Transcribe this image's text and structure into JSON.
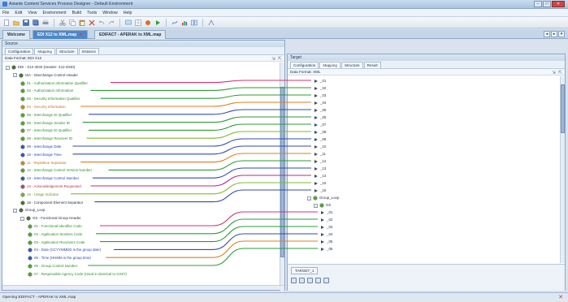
{
  "window": {
    "title": "Axiante Content Services Process Designer - Default Environment",
    "controls": [
      "–",
      "□",
      "✕"
    ]
  },
  "menu": [
    "File",
    "Edit",
    "View",
    "Environment",
    "Build",
    "Tools",
    "Window",
    "Help"
  ],
  "toolbar_icons": [
    "new-icon",
    "open-icon",
    "save-icon",
    "save-all-icon",
    "print-icon",
    "cut-icon",
    "copy-icon",
    "paste-icon",
    "delete-icon",
    "undo-icon",
    "redo-icon",
    "screen-icon",
    "grid-icon",
    "build-icon",
    "run-icon",
    "map-icon",
    "chart-icon",
    "compare-icon",
    "settings-icon"
  ],
  "doc_tabs": [
    {
      "label": "Welcome",
      "active": false
    },
    {
      "label": "EDI X12 to XML.map",
      "active": true
    },
    {
      "label": "EDIFACT - APERAK to XML.map",
      "active": false
    }
  ],
  "source": {
    "header": "Source",
    "tabs": [
      "Configuration",
      "Mapping",
      "Structure",
      "Instance"
    ],
    "active_tab": "Mapping",
    "data_format": "Data Format: EDI X12",
    "tree": [
      {
        "label": "EDI - X12-4040 (Header: X12-4040)",
        "color": "dark",
        "indent": 0,
        "expander": "-"
      },
      {
        "label": "ISA - Interchange Control Header",
        "color": "dark",
        "indent": 1,
        "expander": "-"
      },
      {
        "label": "01 - Authorization Information Qualifier",
        "color": "green",
        "indent": 2
      },
      {
        "label": "02 - Authorization Information",
        "color": "green",
        "indent": 2
      },
      {
        "label": "03 - Security Information Qualifier",
        "color": "green",
        "indent": 2
      },
      {
        "label": "04 - Security Information",
        "color": "orange",
        "indent": 2
      },
      {
        "label": "05 - Interchange ID Qualifier",
        "color": "green",
        "indent": 2
      },
      {
        "label": "06 - Interchange Sender ID",
        "color": "green",
        "indent": 2
      },
      {
        "label": "07 - Interchange ID Qualifier",
        "color": "green",
        "indent": 2
      },
      {
        "label": "08 - Interchange Receiver ID",
        "color": "green",
        "indent": 2
      },
      {
        "label": "09 - Interchange Date",
        "color": "blue",
        "indent": 2
      },
      {
        "label": "10 - Interchange Time",
        "color": "blue",
        "indent": 2
      },
      {
        "label": "11 - Repetition Separator",
        "color": "orange",
        "indent": 2
      },
      {
        "label": "12 - Interchange Control Version Number",
        "color": "green",
        "indent": 2
      },
      {
        "label": "13 - Interchange Control Number",
        "color": "blue",
        "indent": 2
      },
      {
        "label": "14 - Acknowledgement Requested",
        "color": "red",
        "indent": 2
      },
      {
        "label": "15 - Usage Indicator",
        "color": "lime",
        "indent": 2
      },
      {
        "label": "16 - Component Element Separator",
        "color": "dark",
        "indent": 2
      },
      {
        "label": "Group_Loop",
        "color": "dark",
        "indent": 1,
        "expander": "-"
      },
      {
        "label": "GS - Functional Group Header",
        "color": "dark",
        "indent": 2,
        "expander": "-"
      },
      {
        "label": "01 - Functional Identifier Code",
        "color": "green",
        "indent": 3
      },
      {
        "label": "02 - Application Senders Code",
        "color": "green",
        "indent": 3
      },
      {
        "label": "03 - Application Receivers Code",
        "color": "green",
        "indent": 3
      },
      {
        "label": "04 - Date (CCYYMMDD is the group date)",
        "color": "blue",
        "indent": 3
      },
      {
        "label": "05 - Time (HHMM is the group time)",
        "color": "blue",
        "indent": 3
      },
      {
        "label": "06 - Group Control Number",
        "color": "green",
        "indent": 3
      },
      {
        "label": "07 - Responsible Agency Code (Used in identical to GS07)",
        "color": "green",
        "indent": 3
      }
    ]
  },
  "target": {
    "header": "Target",
    "tabs": [
      "Configuration",
      "Mapping",
      "Structure",
      "Result"
    ],
    "active_tab": "Mapping",
    "data_format": "Data Format: XML",
    "tree": [
      {
        "label": "_01",
        "indent": 0
      },
      {
        "label": "_02",
        "indent": 0
      },
      {
        "label": "_03",
        "indent": 0
      },
      {
        "label": "_04",
        "indent": 0
      },
      {
        "label": "_05",
        "indent": 0
      },
      {
        "label": "_06",
        "indent": 0
      },
      {
        "label": "_07",
        "indent": 0
      },
      {
        "label": "_08",
        "indent": 0
      },
      {
        "label": "_09",
        "indent": 0
      },
      {
        "label": "_10",
        "indent": 0
      },
      {
        "label": "_11",
        "indent": 0
      },
      {
        "label": "_12",
        "indent": 0
      },
      {
        "label": "_13",
        "indent": 0
      },
      {
        "label": "_14",
        "indent": 0
      },
      {
        "label": "_15",
        "indent": 0
      },
      {
        "label": "_16",
        "indent": 0
      },
      {
        "label": "Group_Loop",
        "indent": -1,
        "expander": "-"
      },
      {
        "label": "GS",
        "indent": 0,
        "expander": "-"
      },
      {
        "label": "_01",
        "indent": 1
      },
      {
        "label": "_02",
        "indent": 1
      },
      {
        "label": "_03",
        "indent": 1
      },
      {
        "label": "_04",
        "indent": 1
      },
      {
        "label": "_05",
        "indent": 1
      },
      {
        "label": "_06",
        "indent": 1
      }
    ],
    "bottom_tab": "TARGET_1"
  },
  "mappings": [
    {
      "from": 2,
      "to": 0,
      "color": "#d4336e"
    },
    {
      "from": 3,
      "to": 1,
      "color": "#2e9a36"
    },
    {
      "from": 4,
      "to": 2,
      "color": "#2e9a36"
    },
    {
      "from": 5,
      "to": 3,
      "color": "#e07d1d"
    },
    {
      "from": 6,
      "to": 4,
      "color": "#2f4bb0"
    },
    {
      "from": 7,
      "to": 5,
      "color": "#2e9a36"
    },
    {
      "from": 8,
      "to": 6,
      "color": "#2e9a36"
    },
    {
      "from": 9,
      "to": 7,
      "color": "#7dbb2c"
    },
    {
      "from": 10,
      "to": 8,
      "color": "#2f4bb0"
    },
    {
      "from": 11,
      "to": 9,
      "color": "#2f4bb0"
    },
    {
      "from": 12,
      "to": 10,
      "color": "#e07d1d"
    },
    {
      "from": 13,
      "to": 11,
      "color": "#2e9a36"
    },
    {
      "from": 14,
      "to": 12,
      "color": "#2f4bb0"
    },
    {
      "from": 15,
      "to": 13,
      "color": "#b32e86"
    },
    {
      "from": 16,
      "to": 14,
      "color": "#7dbb2c"
    },
    {
      "from": 17,
      "to": 15,
      "color": "#2f4bb0"
    },
    {
      "from": 20,
      "to": 18,
      "color": "#d4336e"
    },
    {
      "from": 21,
      "to": 19,
      "color": "#2e9a36"
    },
    {
      "from": 22,
      "to": 20,
      "color": "#2e9a36"
    },
    {
      "from": 23,
      "to": 21,
      "color": "#2f4bb0"
    },
    {
      "from": 24,
      "to": 22,
      "color": "#e07d1d"
    },
    {
      "from": 25,
      "to": 23,
      "color": "#2e9a36"
    }
  ],
  "status": {
    "text": "Opening EDIFACT - APERAK to XML.map"
  }
}
